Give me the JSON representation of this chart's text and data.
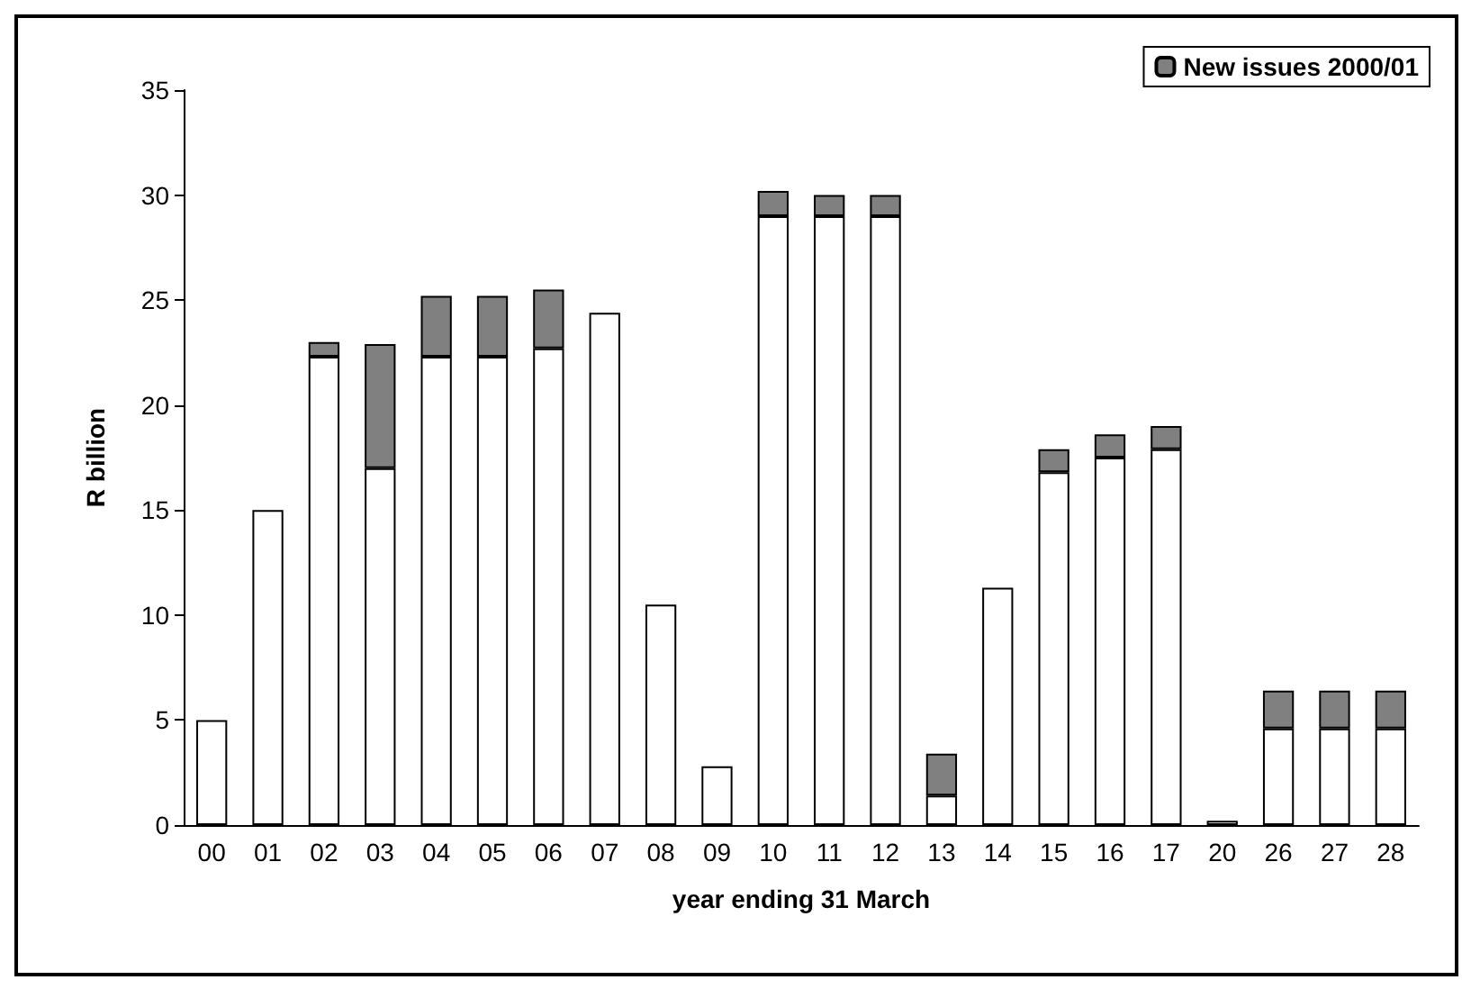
{
  "chart_data": {
    "type": "bar",
    "stacked": true,
    "xlabel": "year ending 31 March",
    "ylabel": "R billion",
    "categories": [
      "00",
      "01",
      "02",
      "03",
      "04",
      "05",
      "06",
      "07",
      "08",
      "09",
      "10",
      "11",
      "12",
      "13",
      "14",
      "15",
      "16",
      "17",
      "20",
      "26",
      "27",
      "28"
    ],
    "series": [
      {
        "color": "#ffffff",
        "values": [
          5,
          15,
          22.3,
          17,
          22.3,
          22.3,
          22.7,
          24.4,
          10.5,
          2.8,
          29,
          29,
          29,
          1.4,
          11.3,
          16.8,
          17.5,
          17.9,
          0.2,
          4.6,
          4.6,
          4.6
        ]
      },
      {
        "name": "New issues 2000/01",
        "color": "#808080",
        "values": [
          null,
          null,
          0.7,
          5.9,
          2.9,
          2.9,
          2.8,
          null,
          null,
          null,
          1.2,
          1,
          1,
          2,
          null,
          1.1,
          1.1,
          1.1,
          null,
          1.8,
          1.8,
          1.8
        ]
      }
    ],
    "ylim": [
      0,
      35
    ],
    "yticks": [
      0,
      5,
      10,
      15,
      20,
      25,
      30,
      35
    ],
    "grid": false,
    "legend": "top right"
  }
}
